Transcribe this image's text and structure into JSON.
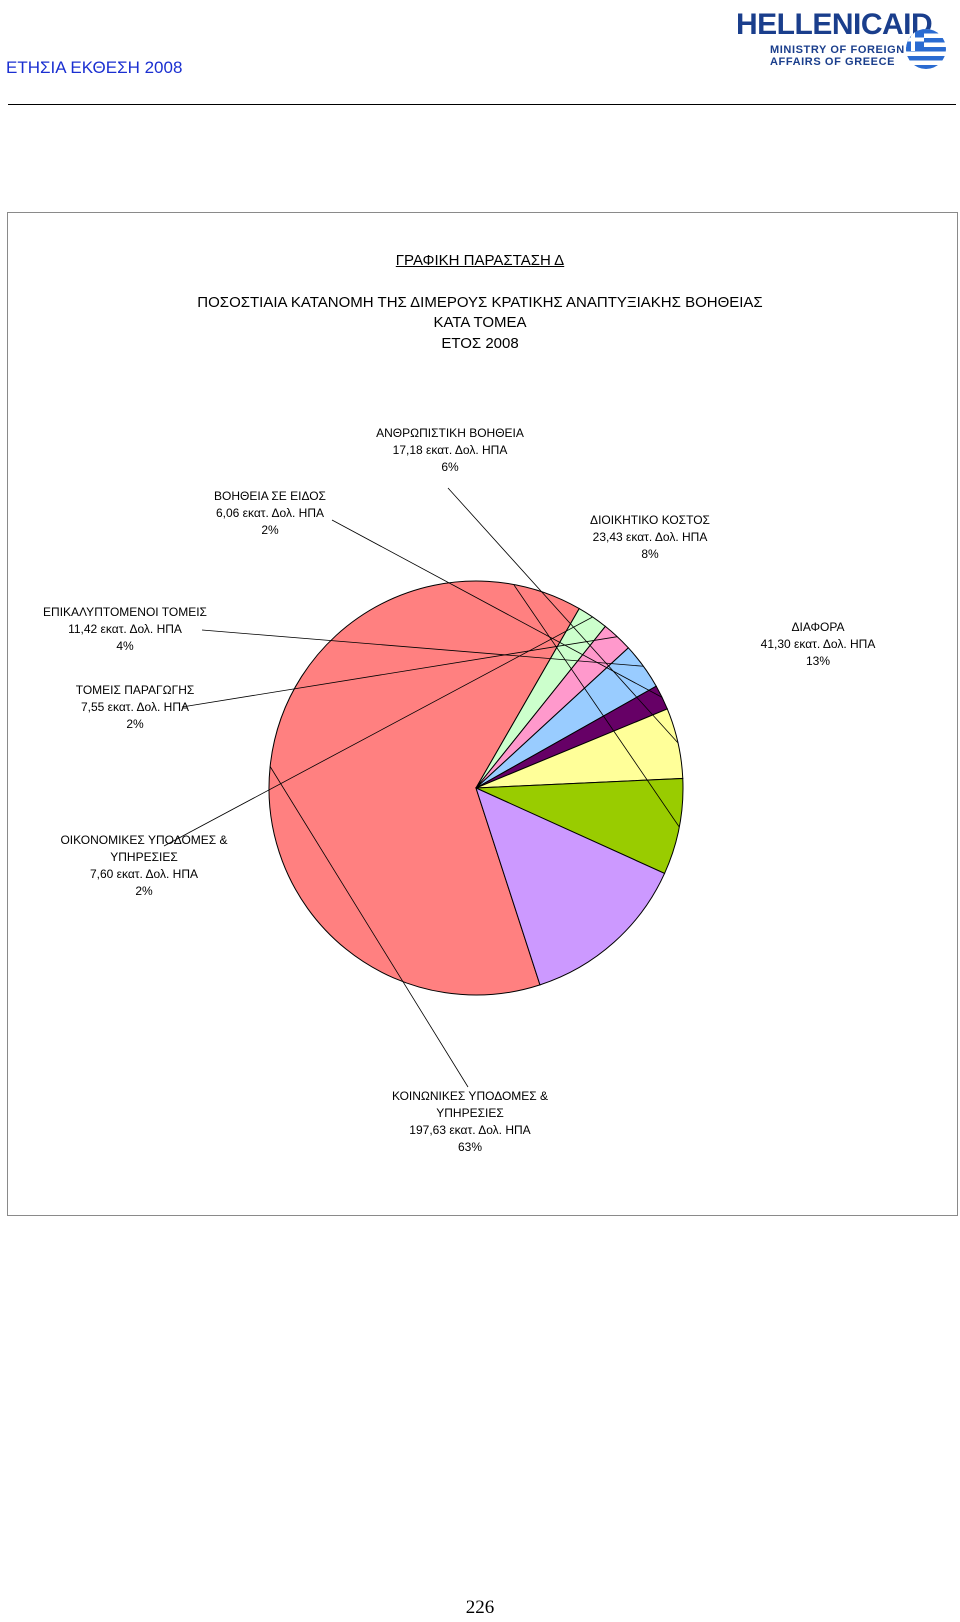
{
  "header": {
    "report_title": "ΕΤΗΣΙΑ ΕΚΘΕΣΗ 2008",
    "logo": {
      "wordmark": "HELLENICAID",
      "line1": "MINISTRY OF FOREIGN",
      "line2": "AFFAIRS OF GREECE"
    }
  },
  "chart_data": {
    "type": "pie",
    "title": "ΓΡΑΦΙΚΗ ΠΑΡΑΣΤΑΣΗ Δ",
    "subtitle_lines": [
      "ΠΟΣΟΣΤΙΑΙΑ ΚΑΤΑΝΟΜΗ ΤΗΣ ΔΙΜΕΡΟΥΣ ΚΡΑΤΙΚΗΣ ΑΝΑΠΤΥΞΙΑΚΗΣ ΒΟΗΘΕΙΑΣ",
      "ΚΑΤΑ ΤΟΜΕΑ",
      "ΕΤΟΣ 2008"
    ],
    "slices": [
      {
        "name": "ΚΟΙΝΩΝΙΚΕΣ ΥΠΟΔΟΜΕΣ & ΥΠΗΡΕΣΙΕΣ",
        "name_lines": [
          "ΚΟΙΝΩΝΙΚΕΣ ΥΠΟΔΟΜΕΣ &",
          "ΥΠΗΡΕΣΙΕΣ"
        ],
        "value": 197.63,
        "value_label": "197,63 εκατ. Δολ. ΗΠΑ",
        "percent_label": "63%",
        "color": "#ff8080"
      },
      {
        "name": "ΟΙΚΟΝΟΜΙΚΕΣ ΥΠΟΔΟΜΕΣ & ΥΠΗΡΕΣΙΕΣ",
        "name_lines": [
          "ΟΙΚΟΝΟΜΙΚΕΣ ΥΠΟΔΟΜΕΣ &",
          "ΥΠΗΡΕΣΙΕΣ"
        ],
        "value": 7.6,
        "value_label": "7,60 εκατ. Δολ. ΗΠΑ",
        "percent_label": "2%",
        "color": "#ccffcc"
      },
      {
        "name": "ΤΟΜΕΙΣ ΠΑΡΑΓΩΓΗΣ",
        "name_lines": [
          "ΤΟΜΕΙΣ ΠΑΡΑΓΩΓΗΣ"
        ],
        "value": 7.55,
        "value_label": "7,55 εκατ. Δολ. ΗΠΑ",
        "percent_label": "2%",
        "color": "#ff99cc"
      },
      {
        "name": "ΕΠΙΚΑΛΥΠΤΟΜΕΝΟΙ ΤΟΜΕΙΣ",
        "name_lines": [
          "ΕΠΙΚΑΛΥΠΤΟΜΕΝΟΙ ΤΟΜΕΙΣ"
        ],
        "value": 11.42,
        "value_label": "11,42 εκατ. Δολ. ΗΠΑ",
        "percent_label": "4%",
        "color": "#99ccff"
      },
      {
        "name": "ΒΟΗΘΕΙΑ ΣΕ ΕΙΔΟΣ",
        "name_lines": [
          "ΒΟΗΘΕΙΑ ΣΕ ΕΙΔΟΣ"
        ],
        "value": 6.06,
        "value_label": "6,06 εκατ. Δολ. ΗΠΑ",
        "percent_label": "2%",
        "color": "#660066"
      },
      {
        "name": "ΑΝΘΡΩΠΙΣΤΙΚΗ ΒΟΗΘΕΙΑ",
        "name_lines": [
          "ΑΝΘΡΩΠΙΣΤΙΚΗ ΒΟΗΘΕΙΑ"
        ],
        "value": 17.18,
        "value_label": "17,18 εκατ. Δολ. ΗΠΑ",
        "percent_label": "6%",
        "color": "#ffff99"
      },
      {
        "name": "ΔΙΟΙΚΗΤΙΚΟ ΚΟΣΤΟΣ",
        "name_lines": [
          "ΔΙΟΙΚΗΤΙΚΟ ΚΟΣΤΟΣ"
        ],
        "value": 23.43,
        "value_label": "23,43 εκατ. Δολ. ΗΠΑ",
        "percent_label": "8%",
        "color": "#99cc00"
      },
      {
        "name": "ΔΙΑΦΟΡΑ",
        "name_lines": [
          "ΔΙΑΦΟΡΑ"
        ],
        "value": 41.3,
        "value_label": "41,30 εκατ. Δολ. ΗΠΑ",
        "percent_label": "13%",
        "color": "#cc99ff"
      }
    ],
    "start_angle_deg": 72,
    "direction": "clockwise"
  },
  "page_number": "226"
}
